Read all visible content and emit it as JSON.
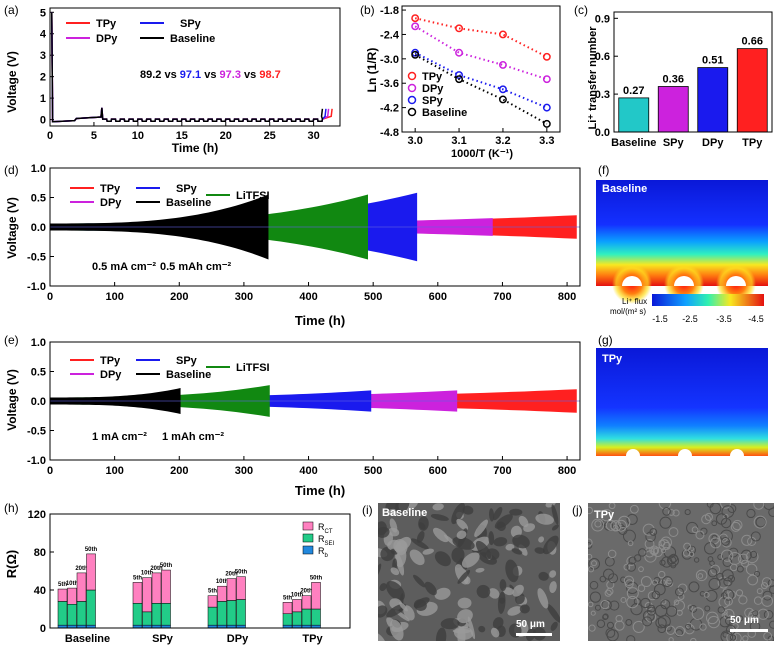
{
  "panel_labels": {
    "a": "(a)",
    "b": "(b)",
    "c": "(c)",
    "d": "(d)",
    "e": "(e)",
    "f": "(f)",
    "g": "(g)",
    "h": "(h)",
    "i": "(i)",
    "j": "(j)"
  },
  "colors": {
    "TPy": "#ff2020",
    "DPy": "#cc22dd",
    "SPy": "#1a1aee",
    "Baseline": "#000000",
    "LiTFSI": "#118811",
    "cyan": "#22c8c8"
  },
  "chart_data": [
    {
      "id": "a",
      "type": "line",
      "xlabel": "Time (h)",
      "ylabel": "Voltage (V)",
      "xlim": [
        0,
        33
      ],
      "ylim": [
        -0.3,
        5.2
      ],
      "xticks": [
        "0",
        "5",
        "10",
        "15",
        "20",
        "25",
        "30"
      ],
      "yticks": [
        "0",
        "1",
        "2",
        "3",
        "4",
        "5"
      ],
      "legend": [
        "TPy",
        "DPy",
        "SPy",
        "Baseline"
      ],
      "annotation": {
        "prefix": "89.2 vs ",
        "v2": "97.1",
        "s1": " vs ",
        "v3": "97.3",
        "s2": " vs ",
        "v4": "98.7"
      }
    },
    {
      "id": "b",
      "type": "scatter",
      "title": "",
      "xlabel": "1000/T (K⁻¹)",
      "ylabel": "Ln (1/R)",
      "xlim": [
        2.97,
        3.33
      ],
      "ylim": [
        -4.8,
        -1.7
      ],
      "xticks": [
        "3.0",
        "3.1",
        "3.2",
        "3.3"
      ],
      "yticks": [
        "-1.8",
        "-2.4",
        "-3.0",
        "-3.6",
        "-4.2",
        "-4.8"
      ],
      "x": [
        3.0,
        3.1,
        3.2,
        3.3
      ],
      "series": [
        {
          "name": "TPy",
          "values": [
            -2.0,
            -2.25,
            -2.4,
            -2.95
          ]
        },
        {
          "name": "DPy",
          "values": [
            -2.2,
            -2.85,
            -3.15,
            -3.5
          ]
        },
        {
          "name": "SPy",
          "values": [
            -2.85,
            -3.4,
            -3.75,
            -4.2
          ]
        },
        {
          "name": "Baseline",
          "values": [
            -2.9,
            -3.5,
            -4.0,
            -4.6
          ]
        }
      ]
    },
    {
      "id": "c",
      "type": "bar",
      "ylabel": "Li⁺ transfer number",
      "categories": [
        "Baseline",
        "SPy",
        "DPy",
        "TPy"
      ],
      "values": [
        0.27,
        0.36,
        0.51,
        0.66
      ],
      "labels": [
        "0.27",
        "0.36",
        "0.51",
        "0.66"
      ],
      "ylim": [
        0,
        0.95
      ],
      "yticks": [
        "0.0",
        "0.3",
        "0.6",
        "0.9"
      ]
    },
    {
      "id": "d",
      "type": "line",
      "xlabel": "Time (h)",
      "ylabel": "Voltage (V)",
      "xlim": [
        0,
        820
      ],
      "ylim": [
        -1.0,
        1.0
      ],
      "xticks": [
        "0",
        "100",
        "200",
        "300",
        "400",
        "500",
        "600",
        "700",
        "800"
      ],
      "yticks": [
        "1.0",
        "0.5",
        "0.0",
        "-0.5",
        "-1.0"
      ],
      "legend": [
        "TPy",
        "SPy",
        "LiTFSI",
        "DPy",
        "Baseline"
      ],
      "note1": "0.5 mA cm⁻²",
      "note2": "0.5 mAh cm⁻²",
      "series": [
        {
          "name": "TPy",
          "end": 815,
          "amp": 0.2
        },
        {
          "name": "DPy",
          "end": 685,
          "amp": 0.15
        },
        {
          "name": "SPy",
          "end": 568,
          "amp": 0.58
        },
        {
          "name": "LiTFSI",
          "end": 492,
          "amp": 0.55
        },
        {
          "name": "Baseline",
          "end": 338,
          "amp": 0.55
        }
      ]
    },
    {
      "id": "e",
      "type": "line",
      "xlabel": "Time (h)",
      "ylabel": "Voltage (V)",
      "xlim": [
        0,
        820
      ],
      "ylim": [
        -1.0,
        1.0
      ],
      "xticks": [
        "0",
        "100",
        "200",
        "300",
        "400",
        "500",
        "600",
        "700",
        "800"
      ],
      "yticks": [
        "1.0",
        "0.5",
        "0.0",
        "-0.5",
        "-1.0"
      ],
      "legend": [
        "TPy",
        "SPy",
        "LiTFSI",
        "DPy",
        "Baseline"
      ],
      "note1": "1 mA cm⁻²",
      "note2": "1 mAh cm⁻²",
      "series": [
        {
          "name": "TPy",
          "end": 815,
          "amp": 0.2
        },
        {
          "name": "DPy",
          "end": 630,
          "amp": 0.18
        },
        {
          "name": "SPy",
          "end": 497,
          "amp": 0.18
        },
        {
          "name": "LiTFSI",
          "end": 340,
          "amp": 0.27
        },
        {
          "name": "Baseline",
          "end": 202,
          "amp": 0.22
        }
      ]
    },
    {
      "id": "h",
      "type": "bar",
      "ylabel": "R(Ω)",
      "categories": [
        "Baseline",
        "SPy",
        "DPy",
        "TPy"
      ],
      "cycles": [
        "5th",
        "10th",
        "20th",
        "50th"
      ],
      "ylim": [
        0,
        120
      ],
      "yticks": [
        "0",
        "40",
        "80",
        "120"
      ],
      "legend": [
        "R_CT",
        "R_SEI",
        "R_b"
      ],
      "stacks": {
        "Baseline": [
          [
            3,
            25,
            13
          ],
          [
            3,
            22,
            17
          ],
          [
            3,
            25,
            30
          ],
          [
            3,
            37,
            38
          ]
        ],
        "SPy": [
          [
            3,
            23,
            22
          ],
          [
            3,
            14,
            36
          ],
          [
            3,
            23,
            32
          ],
          [
            3,
            23,
            35
          ]
        ],
        "DPy": [
          [
            3,
            19,
            12
          ],
          [
            3,
            25,
            16
          ],
          [
            3,
            26,
            23
          ],
          [
            3,
            27,
            24
          ]
        ],
        "TPy": [
          [
            3,
            12,
            12
          ],
          [
            3,
            14,
            13
          ],
          [
            3,
            17,
            14
          ],
          [
            3,
            17,
            28
          ]
        ]
      }
    }
  ],
  "sim": {
    "f": {
      "label": "Baseline"
    },
    "g": {
      "label": "TPy"
    },
    "colorbar": {
      "title1": "Li⁺ flux",
      "title2": "mol/(m² s)",
      "ticks": [
        "-1.5",
        "-2.5",
        "-3.5",
        "-4.5"
      ]
    }
  },
  "sem": {
    "i": {
      "label": "Baseline",
      "scale": "50 μm"
    },
    "j": {
      "label": "TPy",
      "scale": "50 μm"
    }
  }
}
